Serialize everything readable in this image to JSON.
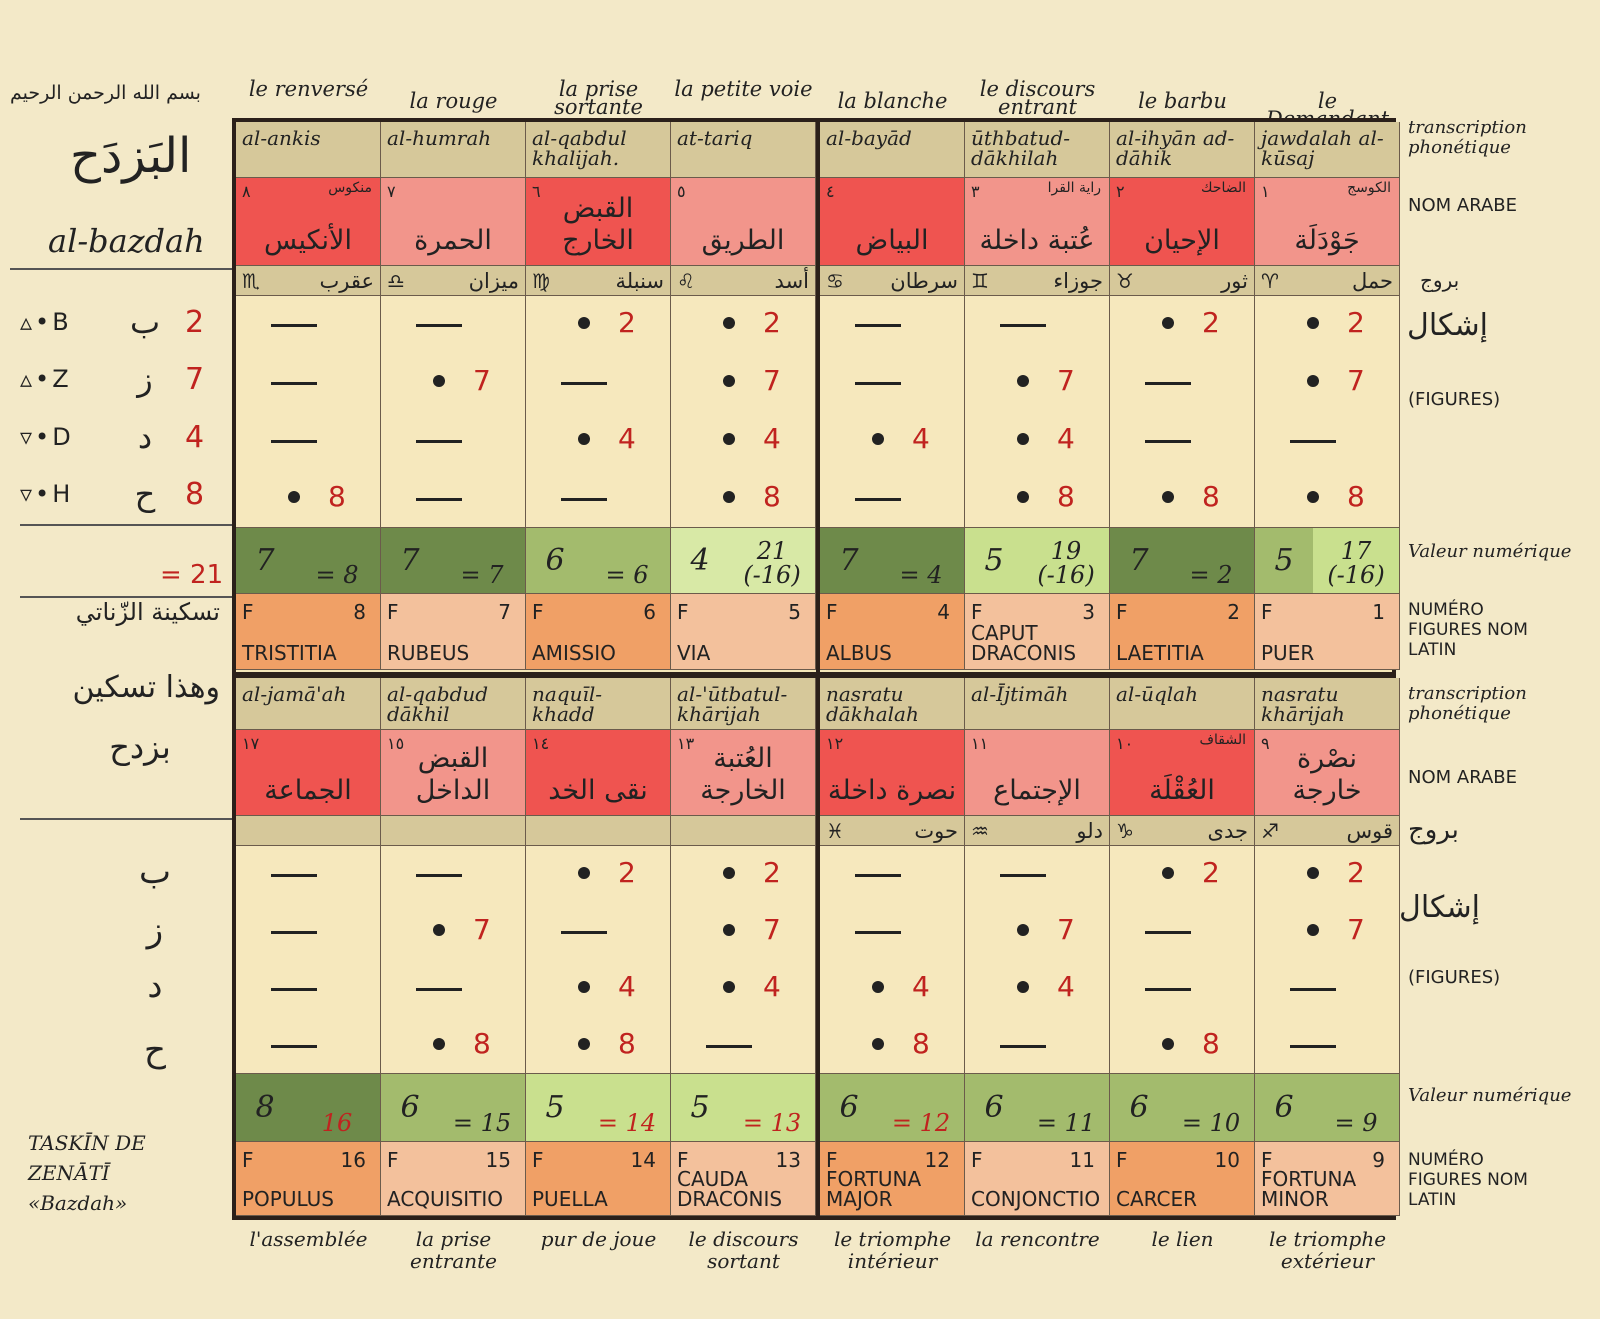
{
  "left": {
    "basmala": "بسم الله الرحمن الرحيم",
    "title_ar": "البَزدَح",
    "title_lat": "al-bazdah",
    "rows": [
      {
        "sym": "▵•B",
        "ar": "ب",
        "num": "2"
      },
      {
        "sym": "▵•Z",
        "ar": "ز",
        "num": "7"
      },
      {
        "sym": "▿•D",
        "ar": "د",
        "num": "4"
      },
      {
        "sym": "▿•H",
        "ar": "ح",
        "num": "8"
      }
    ],
    "sum": "= 21",
    "taskin_ar_1": "تسكينة الزّناتي",
    "taskin_ar_2": "وهذا تسكين",
    "taskin_ar_3": "بزدح",
    "lower_letters": [
      "ب",
      "ز",
      "د",
      "ح"
    ],
    "taskin_lat": [
      "TASKĪN DE",
      "ZENĀTĪ",
      "«Bazdah»"
    ]
  },
  "right_labels": {
    "transcription": "transcription phonétique",
    "nom_arabe": "NOM ARABE",
    "burouj": "بروج",
    "ashkal": "إشكال",
    "figures": "(FIGURES)",
    "valeur": "Valeur numérique",
    "numero": "NUMÉRO FIGURES NOM LATIN"
  },
  "top_gloss": [
    "le renversé",
    "la rouge",
    "la prise sortante",
    "la petite voie",
    "la blanche",
    "le discours entrant",
    "le barbu",
    "le Demandant"
  ],
  "bottom_gloss": [
    "l'assemblée",
    "la prise entrante",
    "pur de joue",
    "le discours sortant",
    "le triomphe intérieur",
    "la rencontre",
    "le lien",
    "le triomphe extérieur"
  ],
  "upper": [
    {
      "trans": "al-ankis",
      "ar_small": "منكوس",
      "idx": "٨",
      "ar": "الأنكيس",
      "zodiac_sym": "♏",
      "zodiac": "عقرب",
      "figs": [
        0,
        0,
        0,
        1
      ],
      "v1": "7",
      "v2": "= 8",
      "F": "F",
      "N": "8",
      "latin": "TRISTITIA"
    },
    {
      "trans": "al-humrah",
      "ar_small": "",
      "idx": "٧",
      "ar": "الحمرة",
      "zodiac_sym": "♎",
      "zodiac": "ميزان",
      "figs": [
        0,
        1,
        0,
        0
      ],
      "v1": "7",
      "v2": "= 7",
      "F": "F",
      "N": "7",
      "latin": "RUBEUS"
    },
    {
      "trans": "al-qabdul khalijah.",
      "ar_small": "",
      "idx": "٦",
      "ar": "القبض الخارج",
      "zodiac_sym": "♍",
      "zodiac": "سنبلة",
      "figs": [
        1,
        0,
        1,
        0
      ],
      "v1": "6",
      "v2": "= 6",
      "F": "F",
      "N": "6",
      "latin": "AMISSIO"
    },
    {
      "trans": "at-tariq",
      "ar_small": "",
      "idx": "٥",
      "ar": "الطريق",
      "zodiac_sym": "♌",
      "zodiac": "أسد",
      "figs": [
        1,
        1,
        1,
        1
      ],
      "v1": "4",
      "v2": "21 (-16)",
      "F": "F",
      "N": "5",
      "latin": "VIA"
    },
    {
      "trans": "al-bayād",
      "ar_small": "",
      "idx": "٤",
      "ar": "البياض",
      "zodiac_sym": "♋",
      "zodiac": "سرطان",
      "figs": [
        0,
        0,
        1,
        0
      ],
      "v1": "7",
      "v2": "= 4",
      "F": "F",
      "N": "4",
      "latin": "ALBUS"
    },
    {
      "trans": "ūthbatud-dākhilah",
      "ar_small": "راية القرا",
      "idx": "٣",
      "ar": "عُتبة داخلة",
      "zodiac_sym": "♊",
      "zodiac": "جوزاء",
      "figs": [
        0,
        1,
        1,
        1
      ],
      "v1": "5",
      "v2": "19 (-16)",
      "F": "F",
      "N": "3",
      "latin": "CAPUT DRACONIS"
    },
    {
      "trans": "al-ihyān ad-dāhik",
      "ar_small": "الضاحك",
      "idx": "٢",
      "ar": "الإحيان",
      "zodiac_sym": "♉",
      "zodiac": "ثور",
      "figs": [
        1,
        0,
        0,
        1
      ],
      "v1": "7",
      "v2": "= 2",
      "F": "F",
      "N": "2",
      "latin": "LAETITIA"
    },
    {
      "trans": "jawdalah al-kūsaj",
      "ar_small": "الكوسج",
      "idx": "١",
      "ar": "جَوْدَلَة",
      "zodiac_sym": "♈",
      "zodiac": "حمل",
      "figs": [
        1,
        1,
        0,
        1
      ],
      "v1": "5",
      "v2": "17 (-16)",
      "F": "F",
      "N": "1",
      "latin": "PUER"
    }
  ],
  "lower": [
    {
      "trans": "al-jamā'ah",
      "ar_small": "",
      "idx": "١٧",
      "ar": "الجماعة",
      "zodiac_sym": "",
      "zodiac": "",
      "figs": [
        0,
        0,
        0,
        0
      ],
      "v1": "8",
      "v2": "16",
      "F": "F",
      "N": "16",
      "latin": "POPULUS"
    },
    {
      "trans": "al-qabdud dākhil",
      "ar_small": "",
      "idx": "١٥",
      "ar": "القبض الداخل",
      "zodiac_sym": "",
      "zodiac": "",
      "figs": [
        0,
        1,
        0,
        1
      ],
      "v1": "6",
      "v2": "= 15",
      "F": "F",
      "N": "15",
      "latin": "ACQUISITIO"
    },
    {
      "trans": "naquīl-khadd",
      "ar_small": "",
      "idx": "١٤",
      "ar": "نقى الخد",
      "zodiac_sym": "",
      "zodiac": "",
      "figs": [
        1,
        0,
        1,
        1
      ],
      "v1": "5",
      "v2": "= 14",
      "F": "F",
      "N": "14",
      "latin": "PUELLA"
    },
    {
      "trans": "al-'ūtbatul-khārijah",
      "ar_small": "",
      "idx": "١٣",
      "ar": "العُتبة الخارجة",
      "zodiac_sym": "",
      "zodiac": "",
      "figs": [
        1,
        1,
        1,
        0
      ],
      "v1": "5",
      "v2": "= 13",
      "F": "F",
      "N": "13",
      "latin": "CAUDA DRACONIS"
    },
    {
      "trans": "nasratu dākhalah",
      "ar_small": "",
      "idx": "١٢",
      "ar": "نصرة داخلة",
      "zodiac_sym": "♓",
      "zodiac": "حوت",
      "figs": [
        0,
        0,
        1,
        1
      ],
      "v1": "6",
      "v2": "= 12",
      "F": "F",
      "N": "12",
      "latin": "FORTUNA MAJOR"
    },
    {
      "trans": "al-Ījtimāh",
      "ar_small": "",
      "idx": "١١",
      "ar": "الإجتماع",
      "zodiac_sym": "♒",
      "zodiac": "دلو",
      "figs": [
        0,
        1,
        1,
        0
      ],
      "v1": "6",
      "v2": "= 11",
      "F": "F",
      "N": "11",
      "latin": "CONJONCTIO"
    },
    {
      "trans": "al-ūqlah",
      "ar_small": "الشقاف",
      "idx": "١٠",
      "ar": "العُقْلَة",
      "zodiac_sym": "♑",
      "zodiac": "جدى",
      "figs": [
        1,
        0,
        0,
        1
      ],
      "v1": "6",
      "v2": "= 10",
      "F": "F",
      "N": "10",
      "latin": "CARCER"
    },
    {
      "trans": "nasratu khārijah",
      "ar_small": "",
      "idx": "٩",
      "ar": "نصْرة خارجة",
      "zodiac_sym": "♐",
      "zodiac": "قوس",
      "figs": [
        1,
        1,
        0,
        0
      ],
      "v1": "6",
      "v2": "= 9",
      "F": "F",
      "N": "9",
      "latin": "FORTUNA MINOR"
    }
  ],
  "fig_numbers": [
    "2",
    "7",
    "4",
    "8"
  ],
  "colors": {
    "ar_upper": [
      "#ef5450",
      "#f2958b",
      "#ef5450",
      "#f2958b",
      "#ef5450",
      "#f2958b",
      "#ef5450",
      "#f2958b"
    ],
    "ar_lower": [
      "#ef5450",
      "#f2958b",
      "#ef5450",
      "#f2958b",
      "#ef5450",
      "#f2958b",
      "#ef5450",
      "#f2958b"
    ],
    "val_upper": [
      [
        "#6e8a4a",
        "#6e8a4a"
      ],
      [
        "#6e8a4a",
        "#6e8a4a"
      ],
      [
        "#a3bb6d",
        "#a3bb6d"
      ],
      [
        "#d8e9a6",
        "#d8e9a6"
      ],
      [
        "#6e8a4a",
        "#6e8a4a"
      ],
      [
        "#c9e08e",
        "#c9e08e"
      ],
      [
        "#6e8a4a",
        "#6e8a4a"
      ],
      [
        "#a3bb6d",
        "#c9e08e"
      ]
    ],
    "val_lower": [
      [
        "#6e8a4a",
        "#6e8a4a"
      ],
      [
        "#a3bb6d",
        "#a3bb6d"
      ],
      [
        "#c9e08e",
        "#c9e08e"
      ],
      [
        "#c9e08e",
        "#c9e08e"
      ],
      [
        "#a3bb6d",
        "#a3bb6d"
      ],
      [
        "#a3bb6d",
        "#a3bb6d"
      ],
      [
        "#a3bb6d",
        "#a3bb6d"
      ],
      [
        "#a3bb6d",
        "#a3bb6d"
      ]
    ],
    "latin_upper": [
      "#f0a066",
      "#f3c19c",
      "#f0a066",
      "#f3c19c",
      "#f0a066",
      "#f3c19c",
      "#f0a066",
      "#f3c19c"
    ],
    "latin_lower": [
      "#f0a066",
      "#f3c19c",
      "#f0a066",
      "#f3c19c",
      "#f0a066",
      "#f3c19c",
      "#f0a066",
      "#f3c19c"
    ]
  }
}
